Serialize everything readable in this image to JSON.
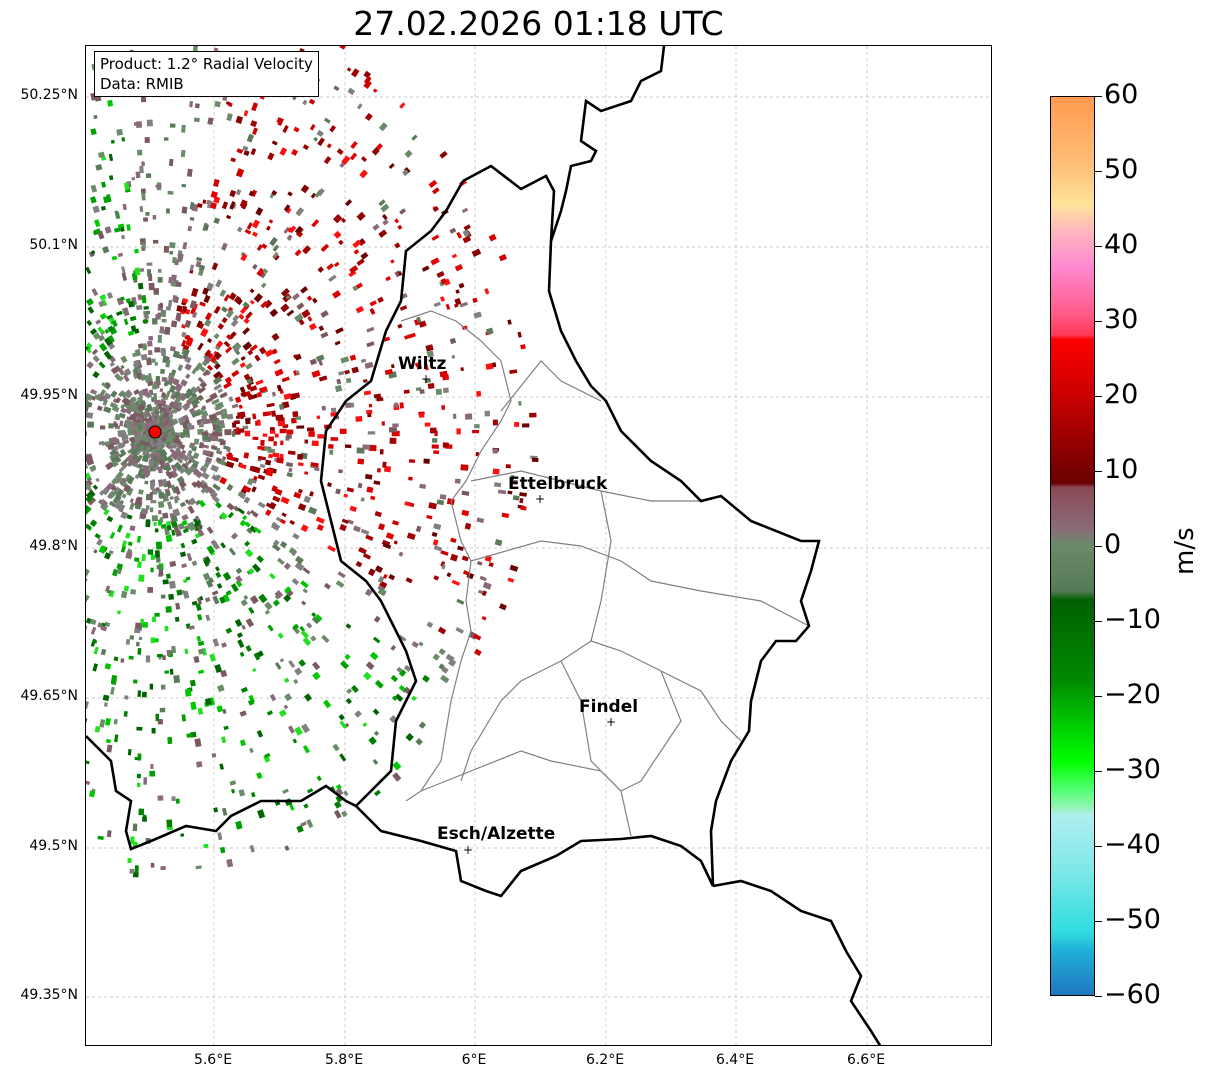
{
  "title": "27.02.2026 01:18 UTC",
  "info": {
    "product": "Product: 1.2° Radial Velocity",
    "data": "Data: RMIB"
  },
  "y_ticks": [
    "50.25°N",
    "50.1°N",
    "49.95°N",
    "49.8°N",
    "49.65°N",
    "49.5°N",
    "49.35°N"
  ],
  "x_ticks": [
    "5.6°E",
    "5.8°E",
    "6°E",
    "6.2°E",
    "6.4°E",
    "6.6°E"
  ],
  "colorbar": {
    "label": "m/s",
    "ticks": [
      "60",
      "50",
      "40",
      "30",
      "20",
      "10",
      "0",
      "−10",
      "−20",
      "−30",
      "−40",
      "−50",
      "−60"
    ],
    "range": [
      -60,
      60
    ]
  },
  "cities": [
    {
      "name": "Wiltz"
    },
    {
      "name": "Ettelbruck"
    },
    {
      "name": "Findel"
    },
    {
      "name": "Esch/Alzette"
    }
  ],
  "radar_site_color": "#ff0000"
}
